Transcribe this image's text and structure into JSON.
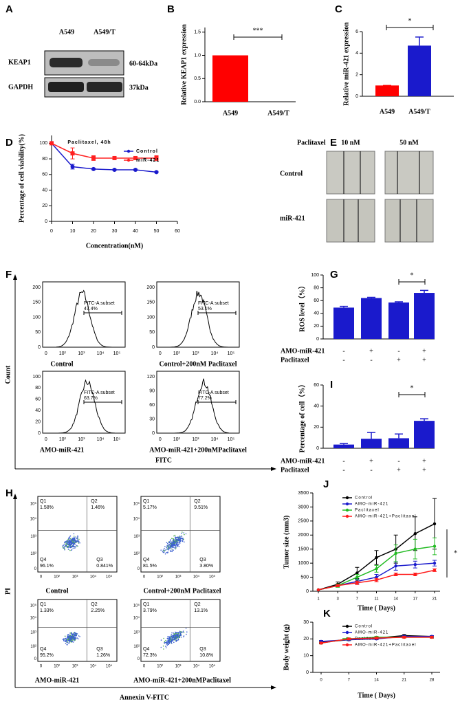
{
  "panel_a": {
    "label": "A",
    "lanes": [
      "A549",
      "A549/T"
    ],
    "proteins": [
      {
        "name": "KEAP1",
        "size": "60-64kDa"
      },
      {
        "name": "GAPDH",
        "size": "37kDa"
      }
    ]
  },
  "panel_e": {
    "label": "E",
    "drug": "Paclitaxel",
    "doses": [
      "10 nM",
      "50  nM"
    ],
    "groups": [
      "Control",
      "miR-421"
    ]
  },
  "panel_f": {
    "label": "F",
    "xlabel": "FITC",
    "ylabel": "Count",
    "gate": "FITC-A subset",
    "xticks": [
      "0",
      "10²",
      "10³",
      "10⁴",
      "10⁵"
    ],
    "plots": [
      {
        "caption": "Control",
        "percent": "47.4%",
        "yticks": [
          "0",
          "50",
          "100",
          "150",
          "200"
        ]
      },
      {
        "caption": "Control+200nM Paclitaxel",
        "percent": "53.1%",
        "yticks": [
          "0",
          "50",
          "100",
          "150",
          "200"
        ]
      },
      {
        "caption": "AMO-miR-421",
        "percent": "63.7%",
        "yticks": [
          "0",
          "20",
          "40",
          "60",
          "80",
          "100"
        ]
      },
      {
        "caption": "AMO-miR-421+200nMPaclitaxel",
        "percent": "77.2%",
        "yticks": [
          "0",
          "30",
          "60",
          "90",
          "120"
        ]
      }
    ]
  },
  "panel_h": {
    "label": "H",
    "xlabel": "Annexin V-FITC",
    "ylabel": "PI",
    "quadrants": [
      "Q1",
      "Q2",
      "Q3",
      "Q4"
    ],
    "ticks": [
      "0",
      "10²",
      "10³",
      "10⁴",
      "10⁵"
    ],
    "plots": [
      {
        "caption": "Control",
        "percents": [
          "1.58%",
          "1.46%",
          "0.841%",
          "96.1%"
        ]
      },
      {
        "caption": "Control+200nM Paclitaxel",
        "percents": [
          "5.17%",
          "9.51%",
          "3.80%",
          "81.5%"
        ]
      },
      {
        "caption": "AMO-miR-421",
        "percents": [
          "1.33%",
          "2.25%",
          "1.26%",
          "95.2%"
        ]
      },
      {
        "caption": "AMO-miR-421+200nMPaclitaxel",
        "percents": [
          "3.79%",
          "13.1%",
          "10.8%",
          "72.3%"
        ]
      }
    ]
  },
  "chart_data": [
    {
      "type": "bar",
      "label": "B",
      "ylabel": "Relative KEAP1 expression",
      "annotation": "***",
      "categories": [
        "A549",
        "A549/T"
      ],
      "values": [
        1.0,
        0.0
      ],
      "colors": [
        "#ff0000",
        "#1a1acc"
      ],
      "ylim": [
        0,
        1.6
      ],
      "yticks": [
        {
          "value": 0,
          "label": "0.0"
        },
        0.5,
        {
          "value": 1,
          "label": "1.0"
        },
        1.5
      ]
    },
    {
      "type": "bar",
      "label": "C",
      "ylabel": "Relative miR-421 expression",
      "annotation": "*",
      "categories": [
        "A549",
        "A549/T"
      ],
      "values": [
        1.0,
        4.7
      ],
      "errors": [
        0,
        0.8
      ],
      "colors": [
        "#ff0000",
        "#1a1acc"
      ],
      "ylim": [
        0,
        6
      ],
      "yticks": [
        0,
        2,
        4,
        6
      ]
    },
    {
      "type": "line",
      "label": "D",
      "title": "Paclitaxel, 48h",
      "xlabel": "Concentration(nM)",
      "ylabel": "Percentage of cell viability(%)",
      "x": [
        0,
        10,
        20,
        30,
        40,
        50
      ],
      "xlim": [
        0,
        60
      ],
      "xticks": [
        0,
        10,
        20,
        30,
        40,
        50,
        60
      ],
      "ylim": [
        0,
        110
      ],
      "yticks": [
        0,
        20,
        40,
        60,
        80,
        100
      ],
      "series": [
        {
          "name": "Control",
          "color": "#1a1acc",
          "marker": "circle",
          "values": [
            100,
            70,
            67,
            66,
            66,
            63
          ],
          "errors": [
            0,
            3,
            1,
            1,
            1,
            1
          ]
        },
        {
          "name": "miR-421",
          "color": "#ff2020",
          "marker": "square",
          "values": [
            100,
            87,
            81,
            81,
            81,
            81
          ],
          "errors": [
            0,
            7,
            3,
            1,
            1,
            3
          ]
        }
      ]
    },
    {
      "type": "bar",
      "label": "G",
      "ylabel": "ROS level（%）",
      "annotation": "*",
      "values": [
        49,
        64,
        57,
        72
      ],
      "errors": [
        2,
        1,
        1,
        4
      ],
      "color": "#1a1acc",
      "conditions": [
        {
          "name": "AMO-miR-421",
          "signs": [
            "-",
            "+",
            "-",
            "+"
          ]
        },
        {
          "name": "Paclitaxel",
          "signs": [
            "-",
            "-",
            "+",
            "+"
          ]
        }
      ],
      "ylim": [
        0,
        100
      ],
      "yticks": [
        0,
        20,
        40,
        60,
        80,
        100
      ]
    },
    {
      "type": "bar",
      "label": "I",
      "ylabel": "Percentage of cell（%）",
      "annotation": "*",
      "values": [
        3.5,
        9,
        9.5,
        26
      ],
      "errors": [
        1,
        6,
        4,
        2
      ],
      "color": "#1a1acc",
      "conditions": [
        {
          "name": "AMO-miR-421",
          "signs": [
            "-",
            "+",
            "-",
            "+"
          ]
        },
        {
          "name": "Paclitaxel",
          "signs": [
            "-",
            "-",
            "+",
            "+"
          ]
        }
      ],
      "ylim": [
        0,
        60
      ],
      "yticks": [
        0,
        20,
        40,
        60
      ]
    },
    {
      "type": "line",
      "label": "J",
      "xlabel": "Time ( Days)",
      "ylabel": "Tumor size (mm3)",
      "annotation": "*",
      "categories": [
        "1",
        "3",
        "7",
        "11",
        "14",
        "17",
        "21"
      ],
      "ylim": [
        0,
        3500
      ],
      "yticks": [
        0,
        500,
        1000,
        1500,
        2000,
        2500,
        3000,
        3500
      ],
      "series": [
        {
          "name": "Control",
          "color": "#000000",
          "marker": "circle",
          "values": [
            50,
            250,
            650,
            1200,
            1500,
            2050,
            2400
          ],
          "errors": [
            0,
            80,
            200,
            250,
            500,
            600,
            900
          ]
        },
        {
          "name": "AMO-miR-421",
          "color": "#1a1acc",
          "marker": "circle",
          "values": [
            50,
            200,
            350,
            500,
            900,
            950,
            1000
          ],
          "errors": [
            0,
            50,
            80,
            100,
            150,
            120,
            100
          ]
        },
        {
          "name": "Paclitaxel",
          "color": "#22bb22",
          "marker": "circle",
          "values": [
            50,
            200,
            500,
            800,
            1350,
            1500,
            1600
          ],
          "errors": [
            0,
            60,
            100,
            120,
            300,
            350,
            300
          ]
        },
        {
          "name": "AMO-miR-421+Paclitaxel",
          "color": "#ff1a1a",
          "marker": "circle",
          "values": [
            50,
            200,
            300,
            400,
            600,
            600,
            750
          ],
          "errors": [
            0,
            40,
            60,
            60,
            50,
            50,
            50
          ]
        }
      ]
    },
    {
      "type": "line",
      "label": "K",
      "xlabel": "Time ( Days)",
      "ylabel": "Body weight (g)",
      "categories": [
        "0",
        "7",
        "14",
        "21",
        "28"
      ],
      "ylim": [
        0,
        30
      ],
      "yticks": [
        0,
        10,
        20,
        30
      ],
      "series": [
        {
          "name": "Control",
          "color": "#000000",
          "marker": "circle",
          "values": [
            18,
            19.5,
            20.5,
            22,
            21.5
          ],
          "errors": [
            0.5,
            0.5,
            0.5,
            0.6,
            0.5
          ]
        },
        {
          "name": "AMO-miR-421",
          "color": "#1a1acc",
          "marker": "circle",
          "values": [
            18.5,
            19.5,
            20,
            21.5,
            21.5
          ],
          "errors": [
            0.6,
            0.5,
            0.5,
            0.5,
            0.5
          ]
        },
        {
          "name": "Paclitaxel",
          "color": "#22bb22",
          "marker": "circle",
          "values": [
            17.5,
            20,
            21,
            21,
            21
          ],
          "errors": [
            0.5,
            0.6,
            0.5,
            0.5,
            0.6
          ]
        },
        {
          "name": "AMO-miR-421+Paclitaxel",
          "color": "#ff1a1a",
          "marker": "circle",
          "values": [
            17.5,
            20,
            20.5,
            21,
            21
          ],
          "errors": [
            0.5,
            0.5,
            0.5,
            0.5,
            0.5
          ]
        }
      ]
    }
  ]
}
